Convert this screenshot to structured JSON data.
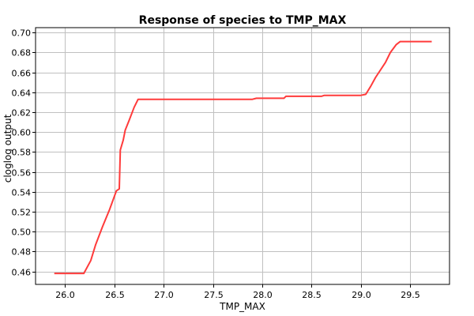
{
  "chart_data": {
    "type": "line",
    "title": "Response of species to TMP_MAX",
    "xlabel": "TMP_MAX",
    "ylabel": "cloglog output",
    "xlim": [
      25.7,
      29.9
    ],
    "ylim": [
      0.447,
      0.705
    ],
    "xticks": [
      26.0,
      26.5,
      27.0,
      27.5,
      28.0,
      28.5,
      29.0,
      29.5
    ],
    "xtick_labels": [
      "26.0",
      "26.5",
      "27.0",
      "27.5",
      "28.0",
      "28.5",
      "29.0",
      "29.5"
    ],
    "yticks": [
      0.46,
      0.48,
      0.5,
      0.52,
      0.54,
      0.56,
      0.58,
      0.6,
      0.62,
      0.64,
      0.66,
      0.68,
      0.7
    ],
    "ytick_labels": [
      "0.46",
      "0.48",
      "0.50",
      "0.52",
      "0.54",
      "0.56",
      "0.58",
      "0.60",
      "0.62",
      "0.64",
      "0.66",
      "0.68",
      "0.70"
    ],
    "grid": true,
    "series": [
      {
        "color": "#ff3b3b",
        "points": [
          [
            25.89,
            0.458
          ],
          [
            26.19,
            0.458
          ],
          [
            26.26,
            0.471
          ],
          [
            26.31,
            0.487
          ],
          [
            26.38,
            0.505
          ],
          [
            26.45,
            0.522
          ],
          [
            26.52,
            0.541
          ],
          [
            26.55,
            0.543
          ],
          [
            26.56,
            0.582
          ],
          [
            26.59,
            0.592
          ],
          [
            26.61,
            0.602
          ],
          [
            26.65,
            0.612
          ],
          [
            26.7,
            0.625
          ],
          [
            26.74,
            0.633
          ],
          [
            26.9,
            0.633
          ],
          [
            27.9,
            0.633
          ],
          [
            27.94,
            0.634
          ],
          [
            28.22,
            0.634
          ],
          [
            28.24,
            0.636
          ],
          [
            28.6,
            0.636
          ],
          [
            28.63,
            0.637
          ],
          [
            29.0,
            0.637
          ],
          [
            29.05,
            0.638
          ],
          [
            29.1,
            0.646
          ],
          [
            29.15,
            0.655
          ],
          [
            29.25,
            0.67
          ],
          [
            29.3,
            0.68
          ],
          [
            29.36,
            0.688
          ],
          [
            29.4,
            0.691
          ],
          [
            29.72,
            0.691
          ]
        ]
      }
    ],
    "colors": {
      "line": "#ff3b3b",
      "grid": "#c0c0c0",
      "axis": "#000000",
      "background": "#ffffff"
    }
  }
}
